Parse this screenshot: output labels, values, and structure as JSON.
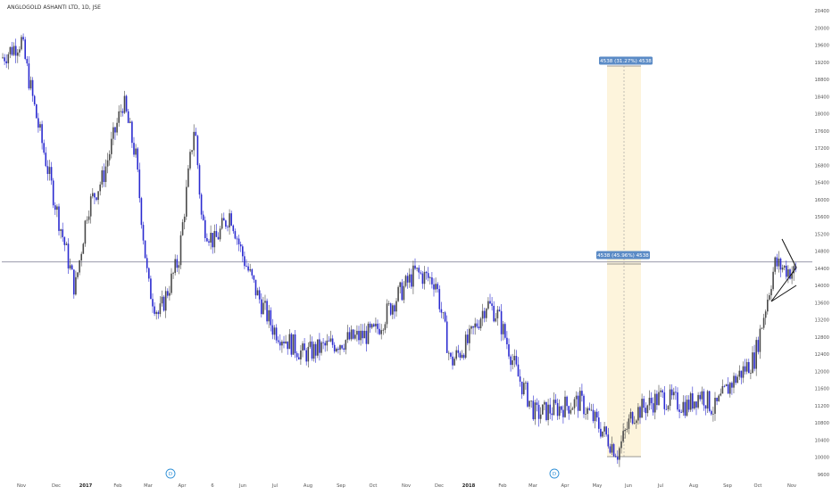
{
  "title": "ANGLOGOLD ASHANTI LTD, 1D, JSE",
  "colors": {
    "up": "#4a4a4a",
    "down": "#2b2bd0",
    "hline": "#8c8c9e",
    "range_fill": "#fdf4dc",
    "label_bg": "#5b8bc6",
    "marker": "#2d8fd6",
    "pattern": "#111111"
  },
  "measure_labels": {
    "top": "4538 (31.27%) 4538",
    "mid": "4538 (45.96%) 4538"
  },
  "event_markers": [
    "D",
    "D"
  ],
  "chart_data": {
    "type": "candlestick",
    "title": "ANGLOGOLD ASHANTI LTD, 1D, JSE",
    "x_ticks": [
      "Nov",
      "Dec",
      "2017",
      "Feb",
      "Mar",
      "Apr",
      "6",
      "Jun",
      "Jul",
      "Aug",
      "Sep",
      "Oct",
      "Nov",
      "Dec",
      "2018",
      "Feb",
      "Mar",
      "Apr",
      "May",
      "Jun",
      "Jul",
      "Aug",
      "Sep",
      "Oct",
      "Nov"
    ],
    "y_ticks": [
      9600,
      10000,
      10400,
      10800,
      11200,
      11600,
      12000,
      12400,
      12800,
      13200,
      13600,
      14000,
      14400,
      14800,
      15200,
      15600,
      16000,
      16400,
      16800,
      17200,
      17600,
      18000,
      18400,
      18800,
      19200,
      19600,
      20000,
      20400
    ],
    "ylim": [
      9600,
      20400
    ],
    "horizontal_line": 14550,
    "price_path": [
      {
        "x": "Nov 2016",
        "y": 19300
      },
      {
        "x": "mid Nov 2016",
        "y": 19700
      },
      {
        "x": "late Nov 2016",
        "y": 18000
      },
      {
        "x": "Dec 2016",
        "y": 15800
      },
      {
        "x": "late Dec 2016",
        "y": 13900
      },
      {
        "x": "Jan 2017",
        "y": 15800
      },
      {
        "x": "mid Jan 2017",
        "y": 16500
      },
      {
        "x": "Feb 2017",
        "y": 18300
      },
      {
        "x": "late Feb 2017",
        "y": 17000
      },
      {
        "x": "Mar 2017",
        "y": 14000
      },
      {
        "x": "mid Mar 2017",
        "y": 13300
      },
      {
        "x": "Apr 2017",
        "y": 14600
      },
      {
        "x": "mid Apr 2017",
        "y": 17800
      },
      {
        "x": "late Apr 2017",
        "y": 15500
      },
      {
        "x": "May 2017",
        "y": 15000
      },
      {
        "x": "late May 2017",
        "y": 15700
      },
      {
        "x": "Jun 2017",
        "y": 14800
      },
      {
        "x": "mid Jun 2017",
        "y": 13800
      },
      {
        "x": "Jul 2017",
        "y": 13000
      },
      {
        "x": "Aug 2017",
        "y": 12400
      },
      {
        "x": "Sep 2017",
        "y": 12700
      },
      {
        "x": "Oct 2017",
        "y": 12900
      },
      {
        "x": "late Oct 2017",
        "y": 13600
      },
      {
        "x": "Nov 2017",
        "y": 14300
      },
      {
        "x": "Dec 2017",
        "y": 14100
      },
      {
        "x": "late Dec 2017",
        "y": 12200
      },
      {
        "x": "Jan 2018",
        "y": 12700
      },
      {
        "x": "mid Jan 2018",
        "y": 13600
      },
      {
        "x": "Feb 2018",
        "y": 13300
      },
      {
        "x": "late Feb 2018",
        "y": 11900
      },
      {
        "x": "Mar 2018",
        "y": 11000
      },
      {
        "x": "Apr 2018",
        "y": 11200
      },
      {
        "x": "mid Apr 2018",
        "y": 11300
      },
      {
        "x": "May 2018",
        "y": 10700
      },
      {
        "x": "mid May 2018",
        "y": 10100
      },
      {
        "x": "Jun 2018",
        "y": 11000
      },
      {
        "x": "Jul 2018",
        "y": 11400
      },
      {
        "x": "Aug 2018",
        "y": 11200
      },
      {
        "x": "late Aug 2018",
        "y": 11500
      },
      {
        "x": "Sep 2018",
        "y": 11100
      },
      {
        "x": "mid Sep 2018",
        "y": 11700
      },
      {
        "x": "Oct 2018",
        "y": 12300
      },
      {
        "x": "mid Oct 2018",
        "y": 14500
      },
      {
        "x": "Nov 2018",
        "y": 14300
      }
    ]
  }
}
